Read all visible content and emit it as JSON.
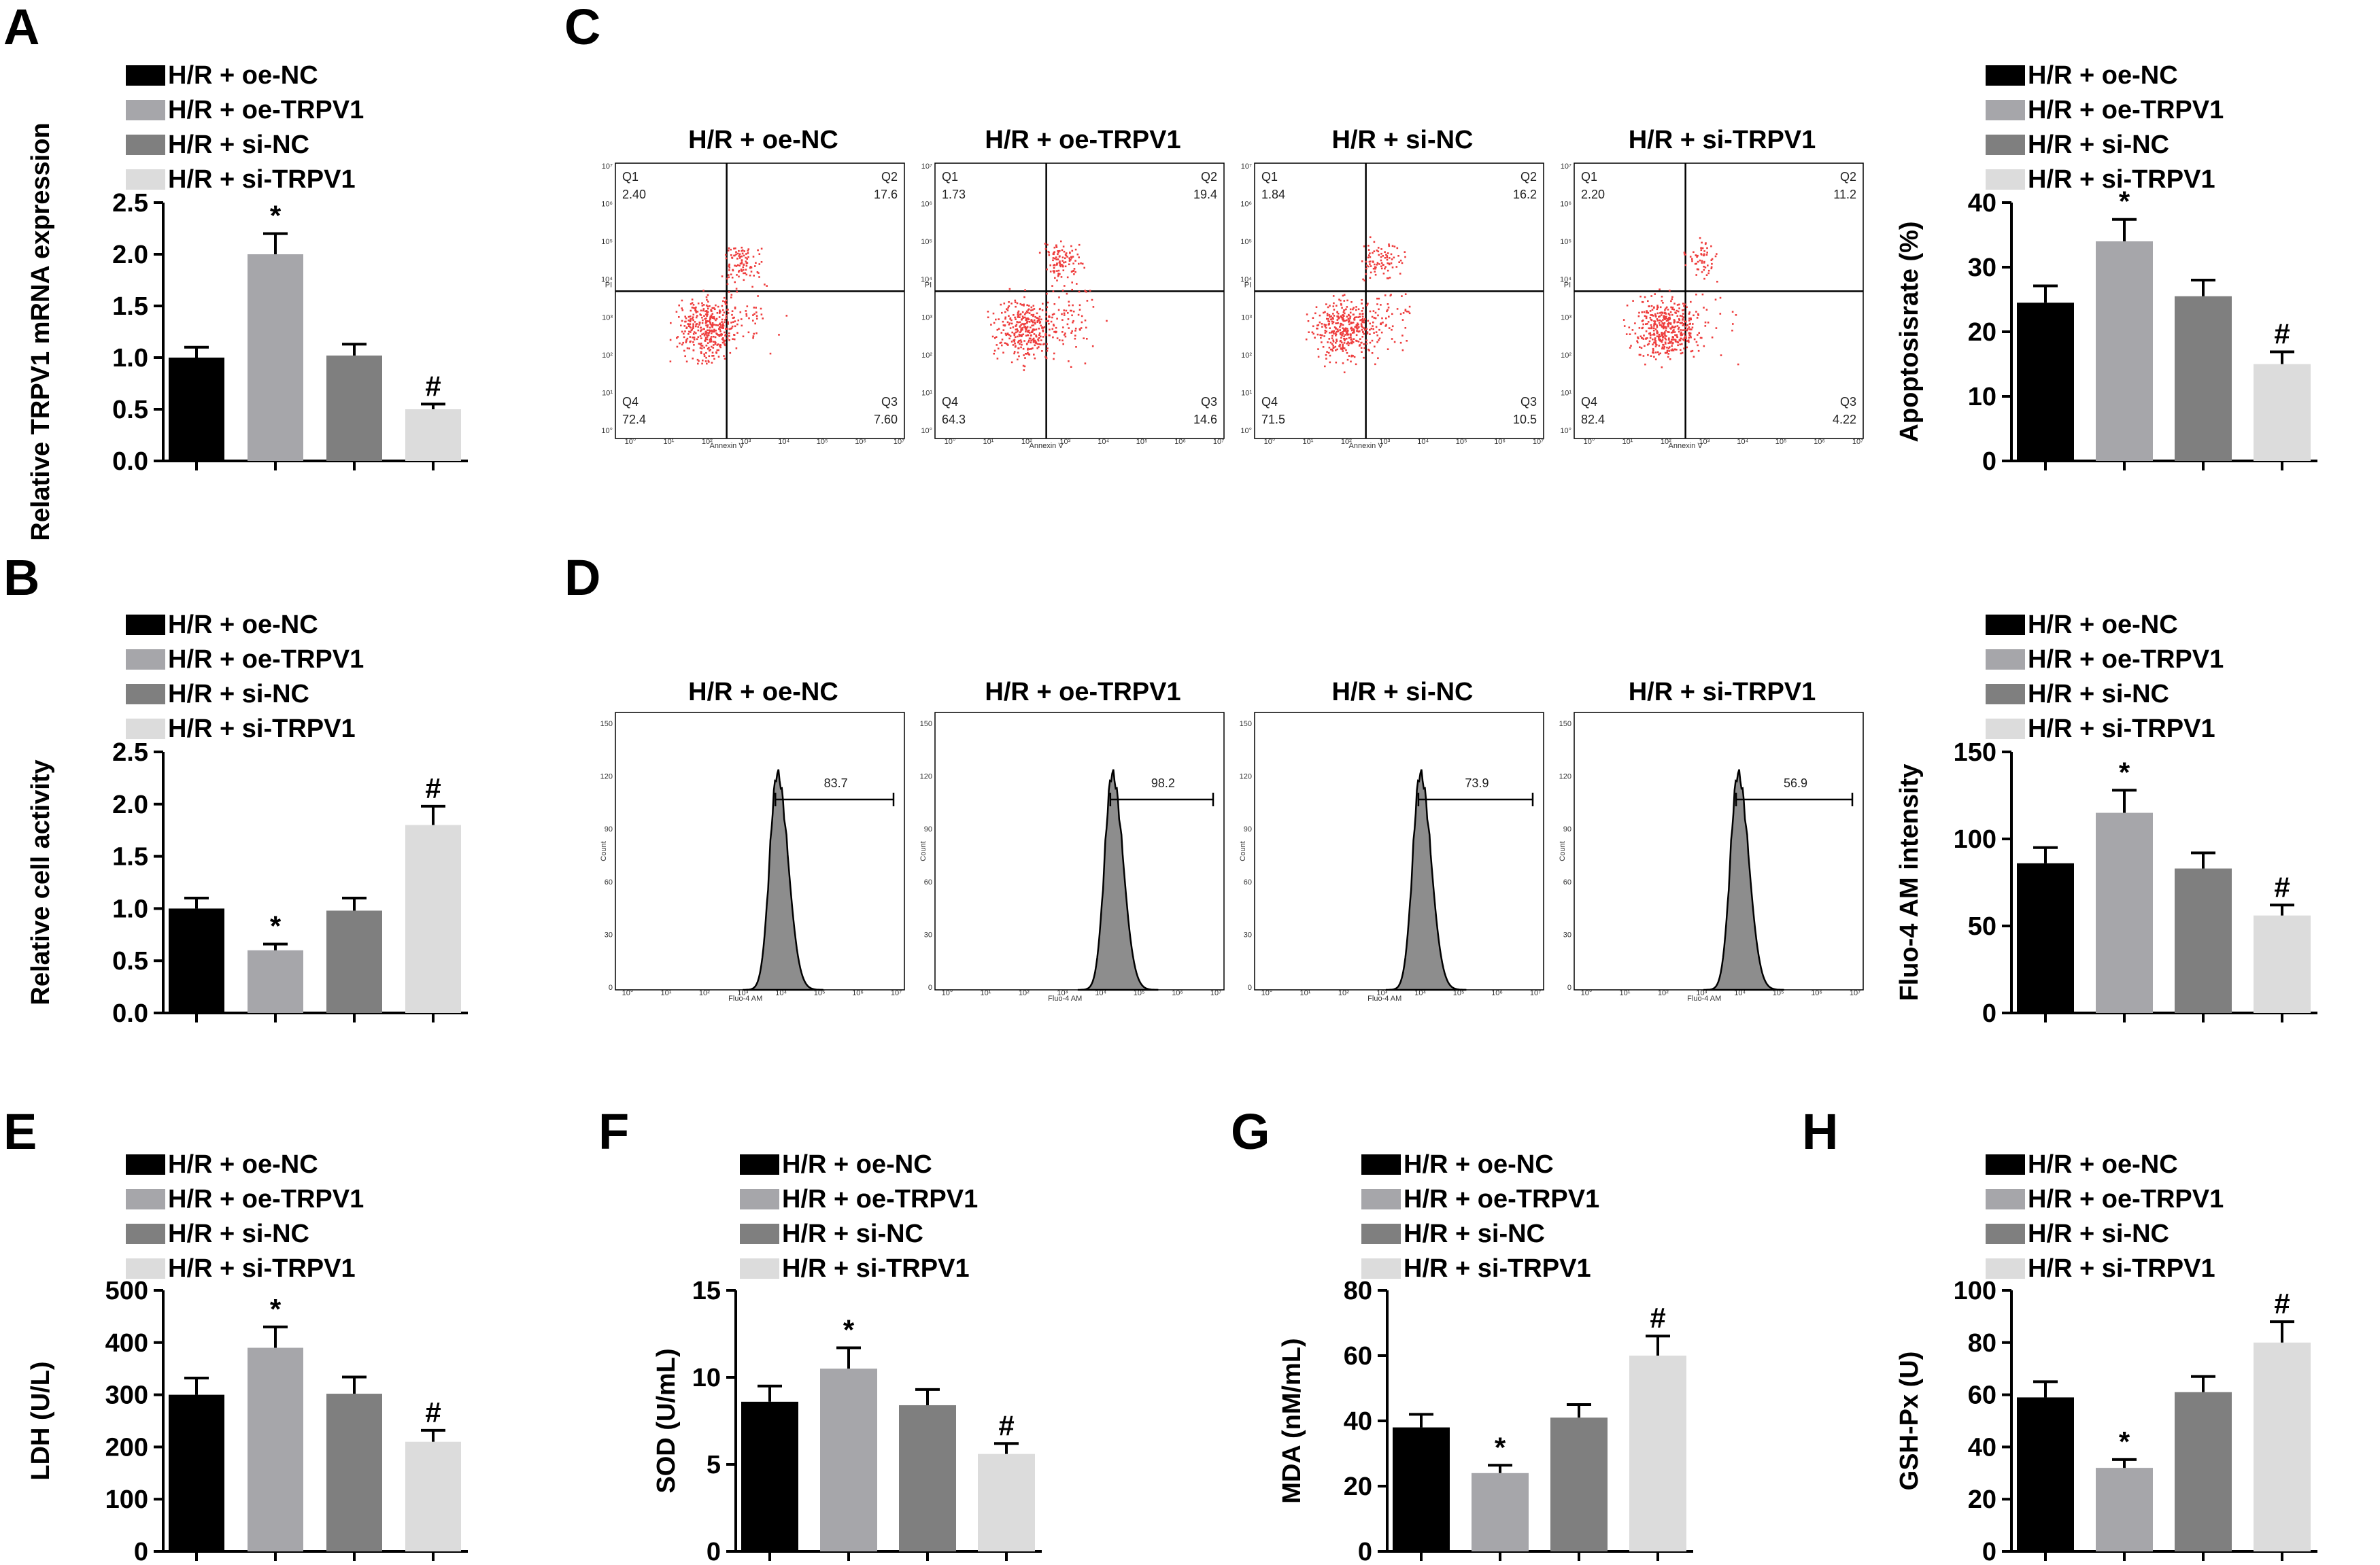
{
  "groups": [
    "H/R + oe-NC",
    "H/R + oe-TRPV1",
    "H/R + si-NC",
    "H/R + si-TRPV1"
  ],
  "colors": {
    "bars": [
      "#000000",
      "#a6a6aa",
      "#7f7f7f",
      "#dcdcdc"
    ],
    "dots": "#ee3d3d",
    "histogram": "#8d8d8d"
  },
  "panel_labels": [
    "A",
    "B",
    "C",
    "D",
    "E",
    "F",
    "G",
    "H"
  ],
  "chart_data": [
    {
      "id": "A",
      "type": "bar",
      "title": "",
      "categories": [
        "H/R + oe-NC",
        "H/R + oe-TRPV1",
        "H/R + si-NC",
        "H/R + si-TRPV1"
      ],
      "values": [
        1.0,
        2.0,
        1.02,
        0.5
      ],
      "errors": [
        0.1,
        0.2,
        0.11,
        0.05
      ],
      "marks": [
        "",
        "*",
        "",
        "#"
      ],
      "ylabel": "Relative TRPV1 mRNA expression",
      "ylim": [
        0,
        2.5
      ],
      "ticks": [
        "0.0",
        "0.5",
        "1.0",
        "1.5",
        "2.0",
        "2.5"
      ]
    },
    {
      "id": "B",
      "type": "bar",
      "title": "",
      "categories": [
        "H/R + oe-NC",
        "H/R + oe-TRPV1",
        "H/R + si-NC",
        "H/R + si-TRPV1"
      ],
      "values": [
        1.0,
        0.6,
        0.98,
        1.8
      ],
      "errors": [
        0.1,
        0.06,
        0.12,
        0.18
      ],
      "marks": [
        "",
        "*",
        "",
        "#"
      ],
      "ylabel": "Relative cell activity",
      "ylim": [
        0,
        2.5
      ],
      "ticks": [
        "0.0",
        "0.5",
        "1.0",
        "1.5",
        "2.0",
        "2.5"
      ]
    },
    {
      "id": "C-bar",
      "type": "bar",
      "title": "",
      "categories": [
        "H/R + oe-NC",
        "H/R + oe-TRPV1",
        "H/R + si-NC",
        "H/R + si-TRPV1"
      ],
      "values": [
        24.5,
        34,
        25.5,
        15
      ],
      "errors": [
        2.6,
        3.4,
        2.5,
        1.9
      ],
      "marks": [
        "",
        "*",
        "",
        "#"
      ],
      "ylabel": "Apoptosisrate (%)",
      "ylim": [
        0,
        40
      ],
      "ticks": [
        "0",
        "10",
        "20",
        "30",
        "40"
      ]
    },
    {
      "id": "D-bar",
      "type": "bar",
      "title": "",
      "categories": [
        "H/R + oe-NC",
        "H/R + oe-TRPV1",
        "H/R + si-NC",
        "H/R + si-TRPV1"
      ],
      "values": [
        86,
        115,
        83,
        56
      ],
      "errors": [
        9,
        13,
        9,
        6
      ],
      "marks": [
        "",
        "*",
        "",
        "#"
      ],
      "ylabel": "Fluo-4 AM intensity",
      "ylim": [
        0,
        150
      ],
      "ticks": [
        "0",
        "50",
        "100",
        "150"
      ]
    },
    {
      "id": "E",
      "type": "bar",
      "title": "",
      "categories": [
        "H/R + oe-NC",
        "H/R + oe-TRPV1",
        "H/R + si-NC",
        "H/R + si-TRPV1"
      ],
      "values": [
        300,
        390,
        302,
        210
      ],
      "errors": [
        32,
        40,
        32,
        22
      ],
      "marks": [
        "",
        "*",
        "",
        "#"
      ],
      "ylabel": "LDH (U/L)",
      "ylim": [
        0,
        500
      ],
      "ticks": [
        "0",
        "100",
        "200",
        "300",
        "400",
        "500"
      ]
    },
    {
      "id": "F",
      "type": "bar",
      "title": "",
      "categories": [
        "H/R + oe-NC",
        "H/R + oe-TRPV1",
        "H/R + si-NC",
        "H/R + si-TRPV1"
      ],
      "values": [
        8.6,
        10.5,
        8.4,
        5.6
      ],
      "errors": [
        0.9,
        1.2,
        0.9,
        0.6
      ],
      "marks": [
        "",
        "*",
        "",
        "#"
      ],
      "ylabel": "SOD (U/mL)",
      "ylim": [
        0,
        15
      ],
      "ticks": [
        "0",
        "5",
        "10",
        "15"
      ]
    },
    {
      "id": "G",
      "type": "bar",
      "title": "",
      "categories": [
        "H/R + oe-NC",
        "H/R + oe-TRPV1",
        "H/R + si-NC",
        "H/R + si-TRPV1"
      ],
      "values": [
        38,
        24,
        41,
        60
      ],
      "errors": [
        4,
        2.4,
        4,
        6
      ],
      "marks": [
        "",
        "*",
        "",
        "#"
      ],
      "ylabel": "MDA (nM/mL)",
      "ylim": [
        0,
        80
      ],
      "ticks": [
        "0",
        "20",
        "40",
        "60",
        "80"
      ]
    },
    {
      "id": "H",
      "type": "bar",
      "title": "",
      "categories": [
        "H/R + oe-NC",
        "H/R + oe-TRPV1",
        "H/R + si-NC",
        "H/R + si-TRPV1"
      ],
      "values": [
        59,
        32,
        61,
        80
      ],
      "errors": [
        6,
        3.2,
        6,
        8
      ],
      "marks": [
        "",
        "*",
        "",
        "#"
      ],
      "ylabel": "GSH-Px (U)",
      "ylim": [
        0,
        100
      ],
      "ticks": [
        "0",
        "20",
        "40",
        "60",
        "80",
        "100"
      ]
    },
    {
      "id": "C-flow",
      "type": "scatter",
      "titles": [
        "H/R + oe-NC",
        "H/R + oe-TRPV1",
        "H/R + si-NC",
        "H/R + si-TRPV1"
      ],
      "quadrant_names": [
        "Q1",
        "Q2",
        "Q3",
        "Q4"
      ],
      "quadrants": [
        {
          "Q1": "2.40",
          "Q2": "17.6",
          "Q3": "7.60",
          "Q4": "72.4"
        },
        {
          "Q1": "1.73",
          "Q2": "19.4",
          "Q3": "14.6",
          "Q4": "64.3"
        },
        {
          "Q1": "1.84",
          "Q2": "16.2",
          "Q3": "10.5",
          "Q4": "71.5"
        },
        {
          "Q1": "2.20",
          "Q2": "11.2",
          "Q3": "4.22",
          "Q4": "82.4"
        }
      ],
      "xlabel": "Annexin V",
      "ylabel": "PI",
      "ticks": [
        "10°",
        "10¹",
        "10²",
        "10³",
        "10⁴",
        "10⁵",
        "10⁶",
        "10⁷"
      ]
    },
    {
      "id": "D-flow",
      "type": "area",
      "titles": [
        "H/R + oe-NC",
        "H/R + oe-TRPV1",
        "H/R + si-NC",
        "H/R + si-TRPV1"
      ],
      "gate_values": [
        "83.7",
        "98.2",
        "73.9",
        "56.9"
      ],
      "peak_log": [
        3.9,
        4.3,
        4.0,
        3.95
      ],
      "xlabel": "Fluo-4 AM",
      "ylabel": "Count",
      "yticks": [
        "0",
        "30",
        "60",
        "90",
        "120",
        "150"
      ],
      "xticks": [
        "10°",
        "10¹",
        "10²",
        "10³",
        "10⁴",
        "10⁵",
        "10⁶",
        "10⁷"
      ]
    }
  ]
}
